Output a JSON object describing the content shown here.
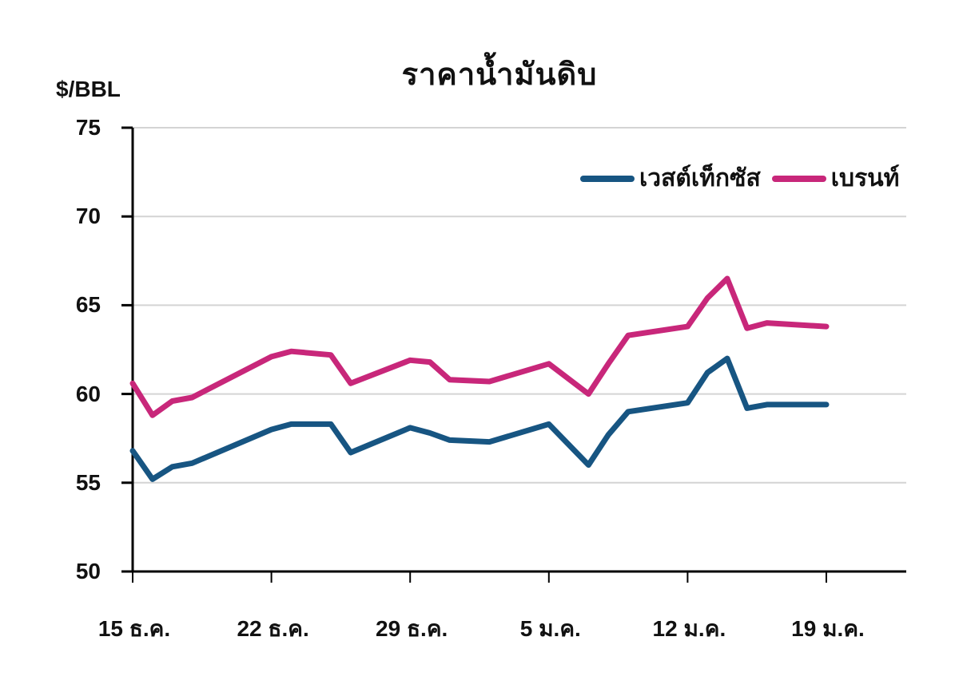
{
  "chart": {
    "title": "ราคาน้ำมันดิบ",
    "y_unit": "$/BBL",
    "y_ticks": [
      "75",
      "70",
      "65",
      "60",
      "55",
      "50"
    ],
    "x_ticks": [
      "15 ธ.ค.",
      "22 ธ.ค.",
      "29 ธ.ค.",
      "5 ม.ค.",
      "12 ม.ค.",
      "19 ม.ค."
    ],
    "legend": [
      {
        "label": "เวสต์เท็กซัส",
        "color": "#175582"
      },
      {
        "label": "เบรนท์",
        "color": "#c8277a"
      }
    ]
  },
  "chart_data": {
    "type": "line",
    "title": "ราคาน้ำมันดิบ",
    "xlabel": "",
    "ylabel": "$/BBL",
    "ylim": [
      50,
      75
    ],
    "yticks": [
      50,
      55,
      60,
      65,
      70,
      75
    ],
    "x_tick_labels": [
      "15 ธ.ค.",
      "22 ธ.ค.",
      "29 ธ.ค.",
      "5 ม.ค.",
      "12 ม.ค.",
      "19 ม.ค."
    ],
    "x_unit": "days since 15 ธ.ค.",
    "xlim": [
      0,
      39
    ],
    "grid": "horizontal",
    "legend_position": "top-right",
    "x": [
      0,
      1,
      2,
      3,
      7,
      8,
      10,
      11,
      14,
      15,
      16,
      18,
      21,
      23,
      24,
      25,
      28,
      29,
      30,
      31,
      32,
      35
    ],
    "series": [
      {
        "name": "เวสต์เท็กซัส",
        "color": "#175582",
        "values": [
          56.8,
          55.2,
          55.9,
          56.1,
          58.0,
          58.3,
          58.3,
          56.7,
          58.1,
          57.8,
          57.4,
          57.3,
          58.3,
          56.0,
          57.7,
          59.0,
          59.5,
          61.2,
          62.0,
          59.2,
          59.4,
          59.4
        ]
      },
      {
        "name": "เบรนท์",
        "color": "#c8277a",
        "values": [
          60.6,
          58.8,
          59.6,
          59.8,
          62.1,
          62.4,
          62.2,
          60.6,
          61.9,
          61.8,
          60.8,
          60.7,
          61.7,
          60.0,
          61.7,
          63.3,
          63.8,
          65.4,
          66.5,
          63.7,
          64.0,
          63.8
        ]
      }
    ]
  }
}
